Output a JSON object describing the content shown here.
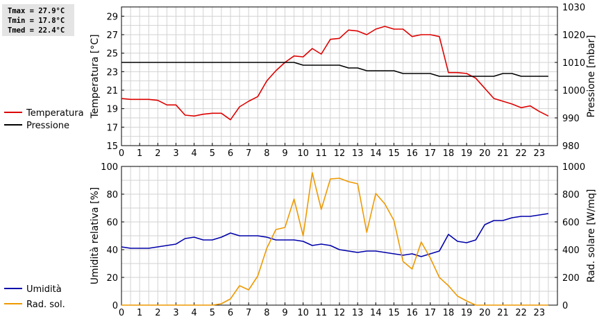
{
  "stats": {
    "tmax": "Tmax = 27.9°C",
    "tmin": "Tmin = 17.8°C",
    "tmed": "Tmed = 22.4°C"
  },
  "colors": {
    "temperature": "#dd0000",
    "pressure": "#000000",
    "humidity": "#0000aa",
    "solar": "#ee9900",
    "grid": "#d2d2d2"
  },
  "chart_data": [
    {
      "type": "line",
      "xlabel": "",
      "ylabel": "Temperatura [°C]",
      "y2label": "Pressione [mbar]",
      "xlim": [
        0,
        24
      ],
      "ylim": [
        15,
        30
      ],
      "y2lim": [
        980,
        1030
      ],
      "xticks": [
        "0",
        "1",
        "2",
        "3",
        "4",
        "5",
        "6",
        "7",
        "8",
        "9",
        "10",
        "11",
        "12",
        "13",
        "14",
        "15",
        "16",
        "17",
        "18",
        "19",
        "20",
        "21",
        "22",
        "23"
      ],
      "yticks": [
        "15",
        "17",
        "19",
        "21",
        "23",
        "25",
        "27",
        "29"
      ],
      "y2ticks": [
        "980",
        "990",
        "1000",
        "1010",
        "1020",
        "1030"
      ],
      "grid": true,
      "legend_position": "left",
      "series": [
        {
          "name": "Temperatura",
          "axis": "left",
          "x": [
            0,
            0.5,
            1,
            1.5,
            2,
            2.5,
            3,
            3.5,
            4,
            4.5,
            5,
            5.5,
            6,
            6.5,
            7,
            7.5,
            8,
            8.5,
            9,
            9.5,
            10,
            10.5,
            11,
            11.5,
            12,
            12.5,
            13,
            13.5,
            14,
            14.5,
            15,
            15.5,
            16,
            16.5,
            17,
            17.5,
            18,
            18.5,
            19,
            19.5,
            20,
            20.5,
            21,
            21.5,
            22,
            22.5,
            23,
            23.5
          ],
          "y": [
            20.1,
            20.0,
            20.0,
            20.0,
            19.9,
            19.4,
            19.4,
            18.3,
            18.2,
            18.4,
            18.5,
            18.5,
            17.8,
            19.2,
            19.8,
            20.3,
            22.0,
            23.1,
            24.0,
            24.7,
            24.6,
            25.5,
            24.9,
            26.5,
            26.6,
            27.5,
            27.4,
            27.0,
            27.6,
            27.9,
            27.6,
            27.6,
            26.8,
            27.0,
            27.0,
            26.8,
            22.9,
            22.9,
            22.8,
            22.3,
            21.2,
            20.1,
            19.8,
            19.5,
            19.1,
            19.3,
            18.7,
            18.2
          ]
        },
        {
          "name": "Pressione",
          "axis": "right",
          "x": [
            0,
            0.5,
            1,
            1.5,
            2,
            2.5,
            3,
            3.5,
            4,
            4.5,
            5,
            5.5,
            6,
            6.5,
            7,
            7.5,
            8,
            8.5,
            9,
            9.5,
            10,
            10.5,
            11,
            11.5,
            12,
            12.5,
            13,
            13.5,
            14,
            14.5,
            15,
            15.5,
            16,
            16.5,
            17,
            17.5,
            18,
            18.5,
            19,
            19.5,
            20,
            20.5,
            21,
            21.5,
            22,
            22.5,
            23,
            23.5
          ],
          "y": [
            1010,
            1010,
            1010,
            1010,
            1010,
            1010,
            1010,
            1010,
            1010,
            1010,
            1010,
            1010,
            1010,
            1010,
            1010,
            1010,
            1010,
            1010,
            1010,
            1010,
            1009,
            1009,
            1009,
            1009,
            1009,
            1008,
            1008,
            1007,
            1007,
            1007,
            1007,
            1006,
            1006,
            1006,
            1006,
            1005,
            1005,
            1005,
            1005,
            1005,
            1005,
            1005,
            1006,
            1006,
            1005,
            1005,
            1005,
            1005
          ]
        }
      ]
    },
    {
      "type": "line",
      "xlabel": "",
      "ylabel": "Umidità relativa [%]",
      "y2label": "Rad. solare [W/mq]",
      "xlim": [
        0,
        24
      ],
      "ylim": [
        0,
        100
      ],
      "y2lim": [
        0,
        1000
      ],
      "xticks": [
        "0",
        "1",
        "2",
        "3",
        "4",
        "5",
        "6",
        "7",
        "8",
        "9",
        "10",
        "11",
        "12",
        "13",
        "14",
        "15",
        "16",
        "17",
        "18",
        "19",
        "20",
        "21",
        "22",
        "23"
      ],
      "yticks": [
        "0",
        "20",
        "40",
        "60",
        "80",
        "100"
      ],
      "y2ticks": [
        "0",
        "200",
        "400",
        "600",
        "800",
        "1000"
      ],
      "grid": true,
      "legend_position": "left",
      "series": [
        {
          "name": "Umidità",
          "axis": "left",
          "x": [
            0,
            0.5,
            1,
            1.5,
            2,
            2.5,
            3,
            3.5,
            4,
            4.5,
            5,
            5.5,
            6,
            6.5,
            7,
            7.5,
            8,
            8.5,
            9,
            9.5,
            10,
            10.5,
            11,
            11.5,
            12,
            12.5,
            13,
            13.5,
            14,
            14.5,
            15,
            15.5,
            16,
            16.5,
            17,
            17.5,
            18,
            18.5,
            19,
            19.5,
            20,
            20.5,
            21,
            21.5,
            22,
            22.5,
            23,
            23.5
          ],
          "y": [
            42,
            41,
            41,
            41,
            42,
            43,
            44,
            48,
            49,
            47,
            47,
            49,
            52,
            50,
            50,
            50,
            49,
            47,
            47,
            47,
            46,
            43,
            44,
            43,
            40,
            39,
            38,
            39,
            39,
            38,
            37,
            36,
            37,
            35,
            37,
            39,
            51,
            46,
            45,
            47,
            58,
            61,
            61,
            63,
            64,
            64,
            65,
            66
          ]
        },
        {
          "name": "Rad. sol.",
          "axis": "right",
          "x": [
            0,
            0.5,
            1,
            1.5,
            2,
            2.5,
            3,
            3.5,
            4,
            4.5,
            5,
            5.5,
            6,
            6.5,
            7,
            7.5,
            8,
            8.5,
            9,
            9.5,
            10,
            10.5,
            11,
            11.5,
            12,
            12.5,
            13,
            13.5,
            14,
            14.5,
            15,
            15.5,
            16,
            16.5,
            17,
            17.5,
            18,
            18.5,
            19,
            19.5,
            20,
            20.5,
            21,
            21.5,
            22,
            22.5,
            23,
            23.5
          ],
          "y": [
            0,
            0,
            0,
            0,
            0,
            0,
            0,
            0,
            0,
            0,
            0,
            10,
            45,
            140,
            110,
            210,
            410,
            545,
            560,
            765,
            500,
            955,
            690,
            910,
            915,
            890,
            875,
            525,
            805,
            730,
            610,
            315,
            260,
            455,
            340,
            200,
            140,
            65,
            30,
            0,
            0,
            0,
            0,
            0,
            0,
            0,
            0,
            0
          ]
        }
      ]
    }
  ]
}
